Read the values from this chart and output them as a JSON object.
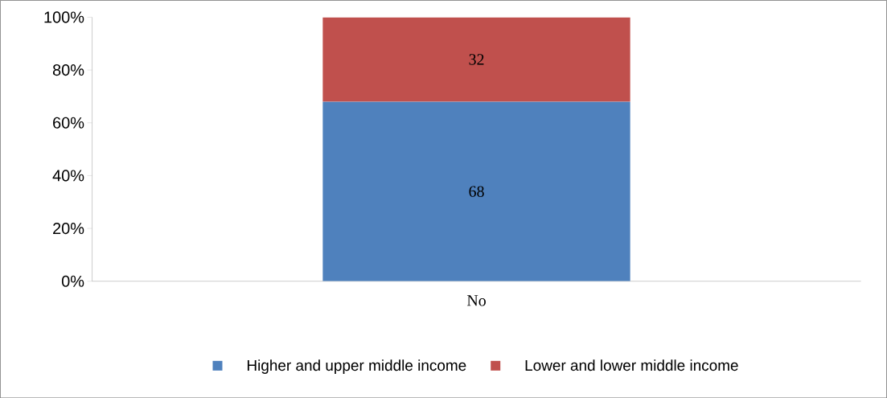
{
  "chart_data": {
    "type": "bar",
    "stacked": true,
    "categories": [
      "No"
    ],
    "series": [
      {
        "name": "Higher and upper middle income",
        "color": "#4f81bd",
        "values": [
          68
        ]
      },
      {
        "name": "Lower and lower middle income",
        "color": "#c0504d",
        "values": [
          32
        ]
      }
    ],
    "ylim": [
      0,
      100
    ],
    "yticks": [
      {
        "value": 0,
        "label": "0%"
      },
      {
        "value": 20,
        "label": "20%"
      },
      {
        "value": 40,
        "label": "40%"
      },
      {
        "value": 60,
        "label": "60%"
      },
      {
        "value": 80,
        "label": "80%"
      },
      {
        "value": 100,
        "label": "100%"
      }
    ],
    "data_labels": true,
    "legend": "bottom",
    "grid": false
  }
}
